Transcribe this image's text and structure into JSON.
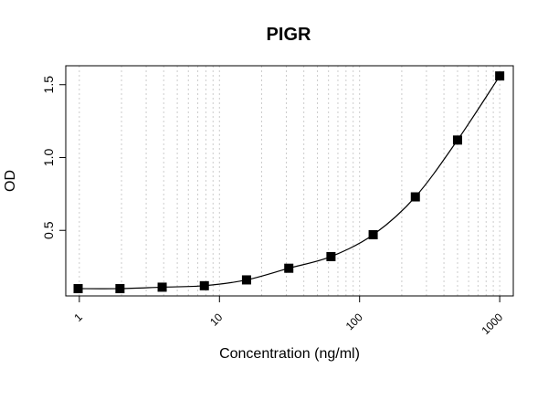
{
  "chart_data": {
    "type": "scatter",
    "title": "PIGR",
    "xlabel": "Concentration (ng/ml)",
    "ylabel": "OD",
    "x_scale": "log",
    "xlim": [
      0.8,
      1250
    ],
    "ylim": [
      0.05,
      1.63
    ],
    "x_ticks": [
      1,
      10,
      100,
      1000
    ],
    "x_tick_labels": [
      "1",
      "10",
      "100",
      "1000"
    ],
    "y_ticks": [
      0.5,
      1.0,
      1.5
    ],
    "y_tick_labels": [
      "0.5",
      "1.0",
      "1.5"
    ],
    "grid": "vertical dotted at log minor ticks",
    "fit_line": "smooth curve through points",
    "marker": "filled square",
    "colors": {
      "marker": "#000000",
      "line": "#000000",
      "grid": "#cccccc"
    },
    "series": [
      {
        "x": [
          0.98,
          1.95,
          3.9,
          7.8,
          15.6,
          31.25,
          62.5,
          125,
          250,
          500,
          1000
        ],
        "y": [
          0.1,
          0.1,
          0.11,
          0.12,
          0.16,
          0.24,
          0.32,
          0.47,
          0.73,
          1.12,
          1.56
        ]
      }
    ]
  }
}
